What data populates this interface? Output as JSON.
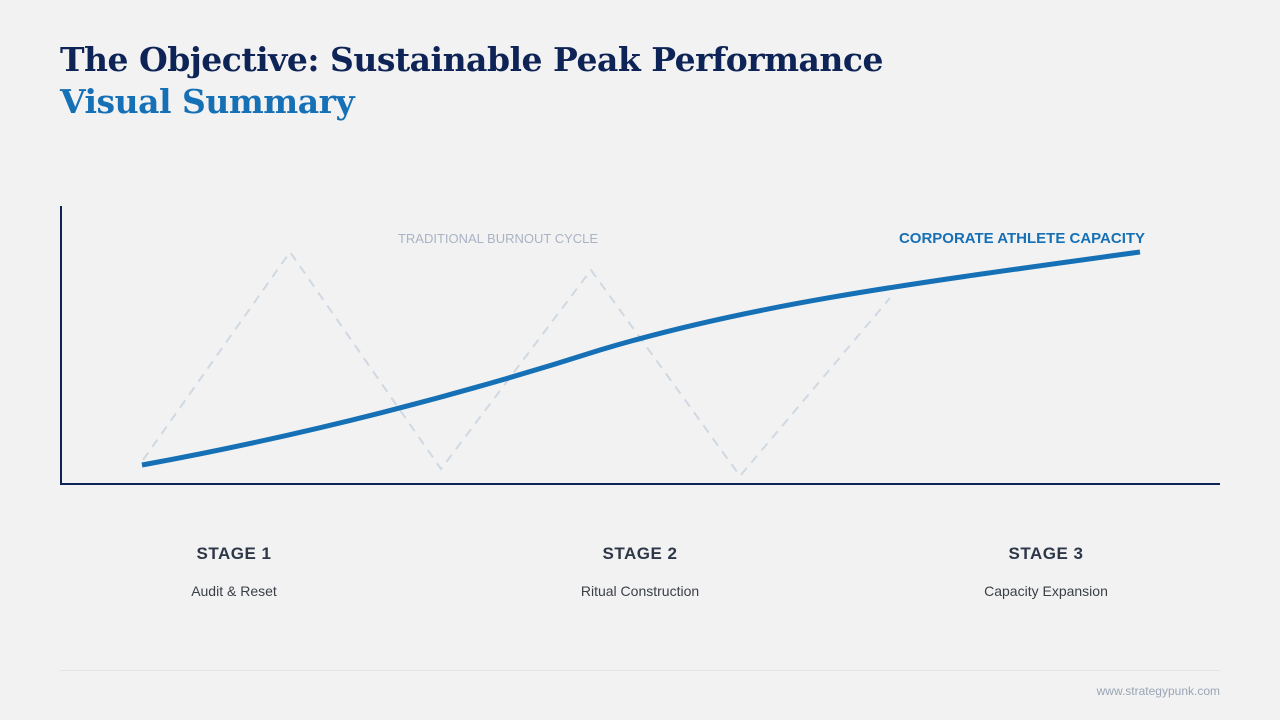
{
  "header": {
    "title": "The Objective: Sustainable Peak Performance",
    "subtitle": "Visual Summary"
  },
  "diagram": {
    "burnout_label": "TRADITIONAL BURNOUT CYCLE",
    "capacity_label": "CORPORATE ATHLETE CAPACITY",
    "colors": {
      "axis": "#0f2456",
      "capacity": "#1670b5",
      "burnout": "#cfd8e3"
    }
  },
  "stages": [
    {
      "title": "STAGE 1",
      "description": "Audit & Reset"
    },
    {
      "title": "STAGE 2",
      "description": "Ritual Construction"
    },
    {
      "title": "STAGE 3",
      "description": "Capacity Expansion"
    }
  ],
  "footer": {
    "url": "www.strategypunk.com"
  }
}
